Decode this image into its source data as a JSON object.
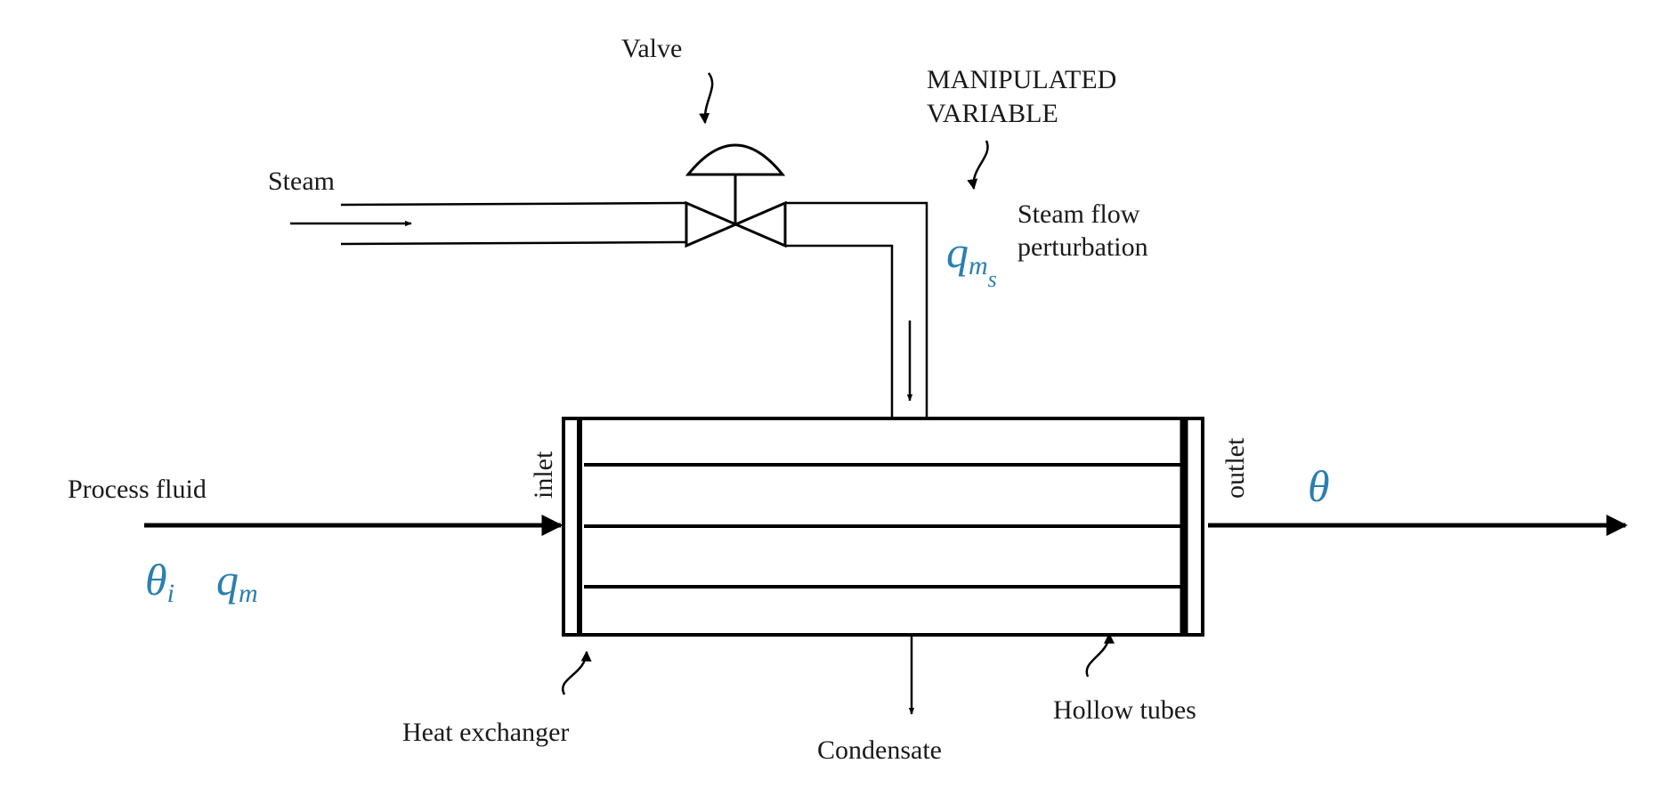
{
  "labels": {
    "valve": "Valve",
    "manipulated_line1": "MANIPULATED",
    "manipulated_line2": "VARIABLE",
    "steam": "Steam",
    "steam_flow_line1": "Steam flow",
    "steam_flow_line2": "perturbation",
    "process_fluid": "Process fluid",
    "inlet": "inlet",
    "outlet": "outlet",
    "heat_exchanger": "Heat exchanger",
    "condensate": "Condensate",
    "hollow_tubes": "Hollow tubes"
  },
  "symbols": {
    "steam_mass_flow": "q",
    "steam_mass_flow_sub1": "m",
    "steam_mass_flow_sub2": "s",
    "inlet_temp": "θ",
    "inlet_temp_sub": "i",
    "mass_flow": "q",
    "mass_flow_sub": "m",
    "outlet_temp": "θ"
  },
  "colors": {
    "symbol": "#2a7fb0",
    "line": "#000000",
    "text": "#1a1a1a"
  }
}
